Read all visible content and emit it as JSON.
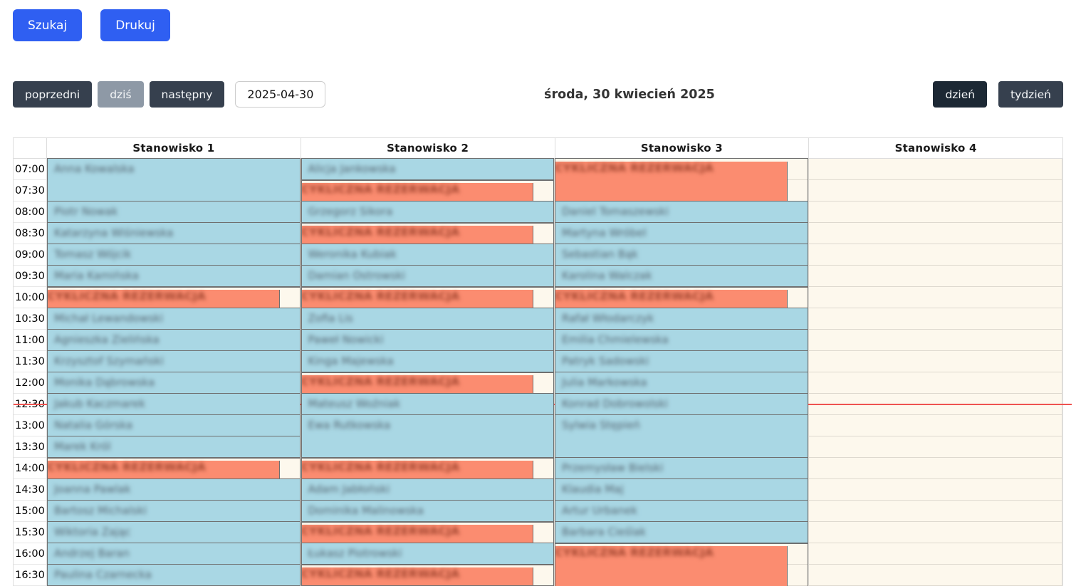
{
  "toolbar": {
    "search_label": "Szukaj",
    "print_label": "Drukuj"
  },
  "nav": {
    "prev_label": "poprzedni",
    "today_label": "dziś",
    "next_label": "następny",
    "date_value": "2025-04-30",
    "title": "środa, 30 kwiecień 2025",
    "day_label": "dzień",
    "week_label": "tydzień"
  },
  "colors": {
    "accent_blue": "#2f5ff2",
    "nav_dark": "#36404e",
    "nav_dark_active": "#1c2834",
    "nav_muted": "#8e99a6",
    "event_blue": "#a9d7e4",
    "event_orange": "#fb8c70",
    "event_border": "#6f6f6f",
    "grid_background": "#fdf8ed",
    "now_line_red": "#ef5350"
  },
  "schedule": {
    "time_labels": [
      "07:00",
      "07:30",
      "08:00",
      "08:30",
      "09:00",
      "09:30",
      "10:00",
      "10:30",
      "11:00",
      "11:30",
      "12:00",
      "12:30",
      "13:00",
      "13:30",
      "14:00",
      "14:30",
      "15:00",
      "15:30",
      "16:00",
      "16:30"
    ],
    "cyclic_label": "CYKLICZNA REZERWACJA",
    "now_line": {
      "row_index": 11,
      "fraction": 0.48
    },
    "columns": [
      {
        "name": "Stanowisko 1",
        "events": [
          {
            "start": 0,
            "slots": 2,
            "type": "regular",
            "label": "Anna Kowalska"
          },
          {
            "start": 2,
            "slots": 1,
            "type": "regular",
            "label": "Piotr Nowak"
          },
          {
            "start": 3,
            "slots": 1,
            "type": "regular",
            "label": "Katarzyna Wiśniewska"
          },
          {
            "start": 4,
            "slots": 1,
            "type": "regular",
            "label": "Tomasz Wójcik"
          },
          {
            "start": 5,
            "slots": 1,
            "type": "regular",
            "label": "Maria Kamińska"
          },
          {
            "start": 6,
            "slots": 1,
            "type": "cyclic",
            "label": "CYKLICZNA REZERWACJA"
          },
          {
            "start": 7,
            "slots": 1,
            "type": "regular",
            "label": "Michał Lewandowski"
          },
          {
            "start": 8,
            "slots": 1,
            "type": "regular",
            "label": "Agnieszka Zielińska"
          },
          {
            "start": 9,
            "slots": 1,
            "type": "regular",
            "label": "Krzysztof Szymański"
          },
          {
            "start": 10,
            "slots": 1,
            "type": "regular",
            "label": "Monika Dąbrowska"
          },
          {
            "start": 11,
            "slots": 1,
            "type": "regular",
            "label": "Jakub Kaczmarek"
          },
          {
            "start": 12,
            "slots": 1,
            "type": "regular",
            "label": "Natalia Górska"
          },
          {
            "start": 13,
            "slots": 1,
            "type": "regular",
            "label": "Marek Król"
          },
          {
            "start": 14,
            "slots": 1,
            "type": "cyclic",
            "label": "CYKLICZNA REZERWACJA"
          },
          {
            "start": 15,
            "slots": 1,
            "type": "regular",
            "label": "Joanna Pawlak"
          },
          {
            "start": 16,
            "slots": 1,
            "type": "regular",
            "label": "Bartosz Michalski"
          },
          {
            "start": 17,
            "slots": 1,
            "type": "regular",
            "label": "Wiktoria Zając"
          },
          {
            "start": 18,
            "slots": 1,
            "type": "regular",
            "label": "Andrzej Baran"
          },
          {
            "start": 19,
            "slots": 1,
            "type": "regular",
            "label": "Paulina Czarnecka"
          },
          {
            "start": 20,
            "slots": 1,
            "type": "regular",
            "label": "",
            "cut": true
          }
        ]
      },
      {
        "name": "Stanowisko 2",
        "events": [
          {
            "start": 0,
            "slots": 1,
            "type": "regular",
            "label": "Alicja Jankowska"
          },
          {
            "start": 1,
            "slots": 1,
            "type": "cyclic",
            "label": "CYKLICZNA REZERWACJA"
          },
          {
            "start": 2,
            "slots": 1,
            "type": "regular",
            "label": "Grzegorz Sikora"
          },
          {
            "start": 3,
            "slots": 1,
            "type": "cyclic",
            "label": "CYKLICZNA REZERWACJA"
          },
          {
            "start": 4,
            "slots": 1,
            "type": "regular",
            "label": "Weronika Kubiak"
          },
          {
            "start": 5,
            "slots": 1,
            "type": "regular",
            "label": "Damian Ostrowski"
          },
          {
            "start": 6,
            "slots": 1,
            "type": "cyclic",
            "label": "CYKLICZNA REZERWACJA"
          },
          {
            "start": 7,
            "slots": 1,
            "type": "regular",
            "label": "Zofia Lis"
          },
          {
            "start": 8,
            "slots": 1,
            "type": "regular",
            "label": "Paweł Nowicki"
          },
          {
            "start": 9,
            "slots": 1,
            "type": "regular",
            "label": "Kinga Majewska"
          },
          {
            "start": 10,
            "slots": 1,
            "type": "cyclic",
            "label": "CYKLICZNA REZERWACJA"
          },
          {
            "start": 11,
            "slots": 1,
            "type": "regular",
            "label": "Mateusz Woźniak"
          },
          {
            "start": 12,
            "slots": 2,
            "type": "regular",
            "label": "Ewa Rutkowska"
          },
          {
            "start": 14,
            "slots": 1,
            "type": "cyclic",
            "label": "CYKLICZNA REZERWACJA"
          },
          {
            "start": 15,
            "slots": 1,
            "type": "regular",
            "label": "Adam Jabłoński"
          },
          {
            "start": 16,
            "slots": 1,
            "type": "regular",
            "label": "Dominika Malinowska"
          },
          {
            "start": 17,
            "slots": 1,
            "type": "cyclic",
            "label": "CYKLICZNA REZERWACJA"
          },
          {
            "start": 18,
            "slots": 1,
            "type": "regular",
            "label": "Łukasz Piotrowski"
          },
          {
            "start": 19,
            "slots": 1,
            "type": "cyclic",
            "label": "CYKLICZNA REZERWACJA"
          },
          {
            "start": 20,
            "slots": 1,
            "type": "regular",
            "label": "",
            "cut": true
          }
        ]
      },
      {
        "name": "Stanowisko 3",
        "events": [
          {
            "start": 0,
            "slots": 2,
            "type": "cyclic",
            "label": "CYKLICZNA REZERWACJA"
          },
          {
            "start": 2,
            "slots": 1,
            "type": "regular",
            "label": "Daniel Tomaszewski"
          },
          {
            "start": 3,
            "slots": 1,
            "type": "regular",
            "label": "Martyna Wróbel"
          },
          {
            "start": 4,
            "slots": 1,
            "type": "regular",
            "label": "Sebastian Bąk"
          },
          {
            "start": 5,
            "slots": 1,
            "type": "regular",
            "label": "Karolina Walczak"
          },
          {
            "start": 6,
            "slots": 1,
            "type": "cyclic",
            "label": "CYKLICZNA REZERWACJA"
          },
          {
            "start": 7,
            "slots": 1,
            "type": "regular",
            "label": "Rafał Włodarczyk"
          },
          {
            "start": 8,
            "slots": 1,
            "type": "regular",
            "label": "Emilia Chmielewska"
          },
          {
            "start": 9,
            "slots": 1,
            "type": "regular",
            "label": "Patryk Sadowski"
          },
          {
            "start": 10,
            "slots": 1,
            "type": "regular",
            "label": "Julia Markowska"
          },
          {
            "start": 11,
            "slots": 1,
            "type": "regular",
            "label": "Konrad Dobrowolski"
          },
          {
            "start": 12,
            "slots": 2,
            "type": "regular",
            "label": "Sylwia Stępień"
          },
          {
            "start": 14,
            "slots": 1,
            "type": "regular",
            "label": "Przemysław Bielski"
          },
          {
            "start": 15,
            "slots": 1,
            "type": "regular",
            "label": "Klaudia Maj"
          },
          {
            "start": 16,
            "slots": 1,
            "type": "regular",
            "label": "Artur Urbanek"
          },
          {
            "start": 17,
            "slots": 1,
            "type": "regular",
            "label": "Barbara Cieślak"
          },
          {
            "start": 18,
            "slots": 2,
            "type": "cyclic",
            "label": "CYKLICZNA REZERWACJA",
            "cut": true
          }
        ]
      },
      {
        "name": "Stanowisko 4",
        "events": []
      }
    ]
  }
}
